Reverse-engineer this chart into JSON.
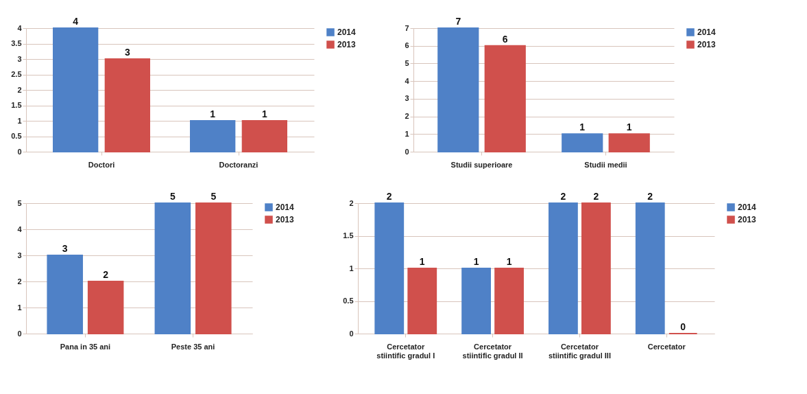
{
  "chart_data": [
    {
      "type": "bar",
      "categories": [
        "Doctori",
        "Doctoranzi"
      ],
      "series": [
        {
          "name": "2014",
          "color": "#4f81c7",
          "values": [
            4,
            1
          ]
        },
        {
          "name": "2013",
          "color": "#d0504c",
          "values": [
            3,
            1
          ]
        }
      ],
      "ylim": [
        0,
        4
      ],
      "yticks": [
        0,
        0.5,
        1,
        1.5,
        2,
        2.5,
        3,
        3.5,
        4
      ],
      "grid": "y",
      "data_labels": true,
      "legend": "right"
    },
    {
      "type": "bar",
      "categories": [
        "Studii superioare",
        "Studii medii"
      ],
      "series": [
        {
          "name": "2014",
          "color": "#4f81c7",
          "values": [
            7,
            1
          ]
        },
        {
          "name": "2013",
          "color": "#d0504c",
          "values": [
            6,
            1
          ]
        }
      ],
      "ylim": [
        0,
        7
      ],
      "yticks": [
        0,
        1,
        2,
        3,
        4,
        5,
        6,
        7
      ],
      "grid": "y",
      "data_labels": true,
      "legend": "right"
    },
    {
      "type": "bar",
      "categories": [
        "Pana in 35 ani",
        "Peste 35 ani"
      ],
      "series": [
        {
          "name": "2014",
          "color": "#4f81c7",
          "values": [
            3,
            5
          ]
        },
        {
          "name": "2013",
          "color": "#d0504c",
          "values": [
            2,
            5
          ]
        }
      ],
      "ylim": [
        0,
        5
      ],
      "yticks": [
        0,
        1,
        2,
        3,
        4,
        5
      ],
      "grid": "y",
      "data_labels": true,
      "legend": "right"
    },
    {
      "type": "bar",
      "categories": [
        "Cercetator stiintific gradul I",
        "Cercetator stiintific gradul II",
        "Cercetator stiintific gradul III",
        "Cercetator"
      ],
      "series": [
        {
          "name": "2014",
          "color": "#4f81c7",
          "values": [
            2,
            1,
            2,
            2
          ]
        },
        {
          "name": "2013",
          "color": "#d0504c",
          "values": [
            1,
            1,
            2,
            0
          ]
        }
      ],
      "ylim": [
        0,
        2
      ],
      "yticks": [
        0,
        0.5,
        1,
        1.5,
        2
      ],
      "grid": "y",
      "data_labels": true,
      "legend": "right"
    }
  ]
}
